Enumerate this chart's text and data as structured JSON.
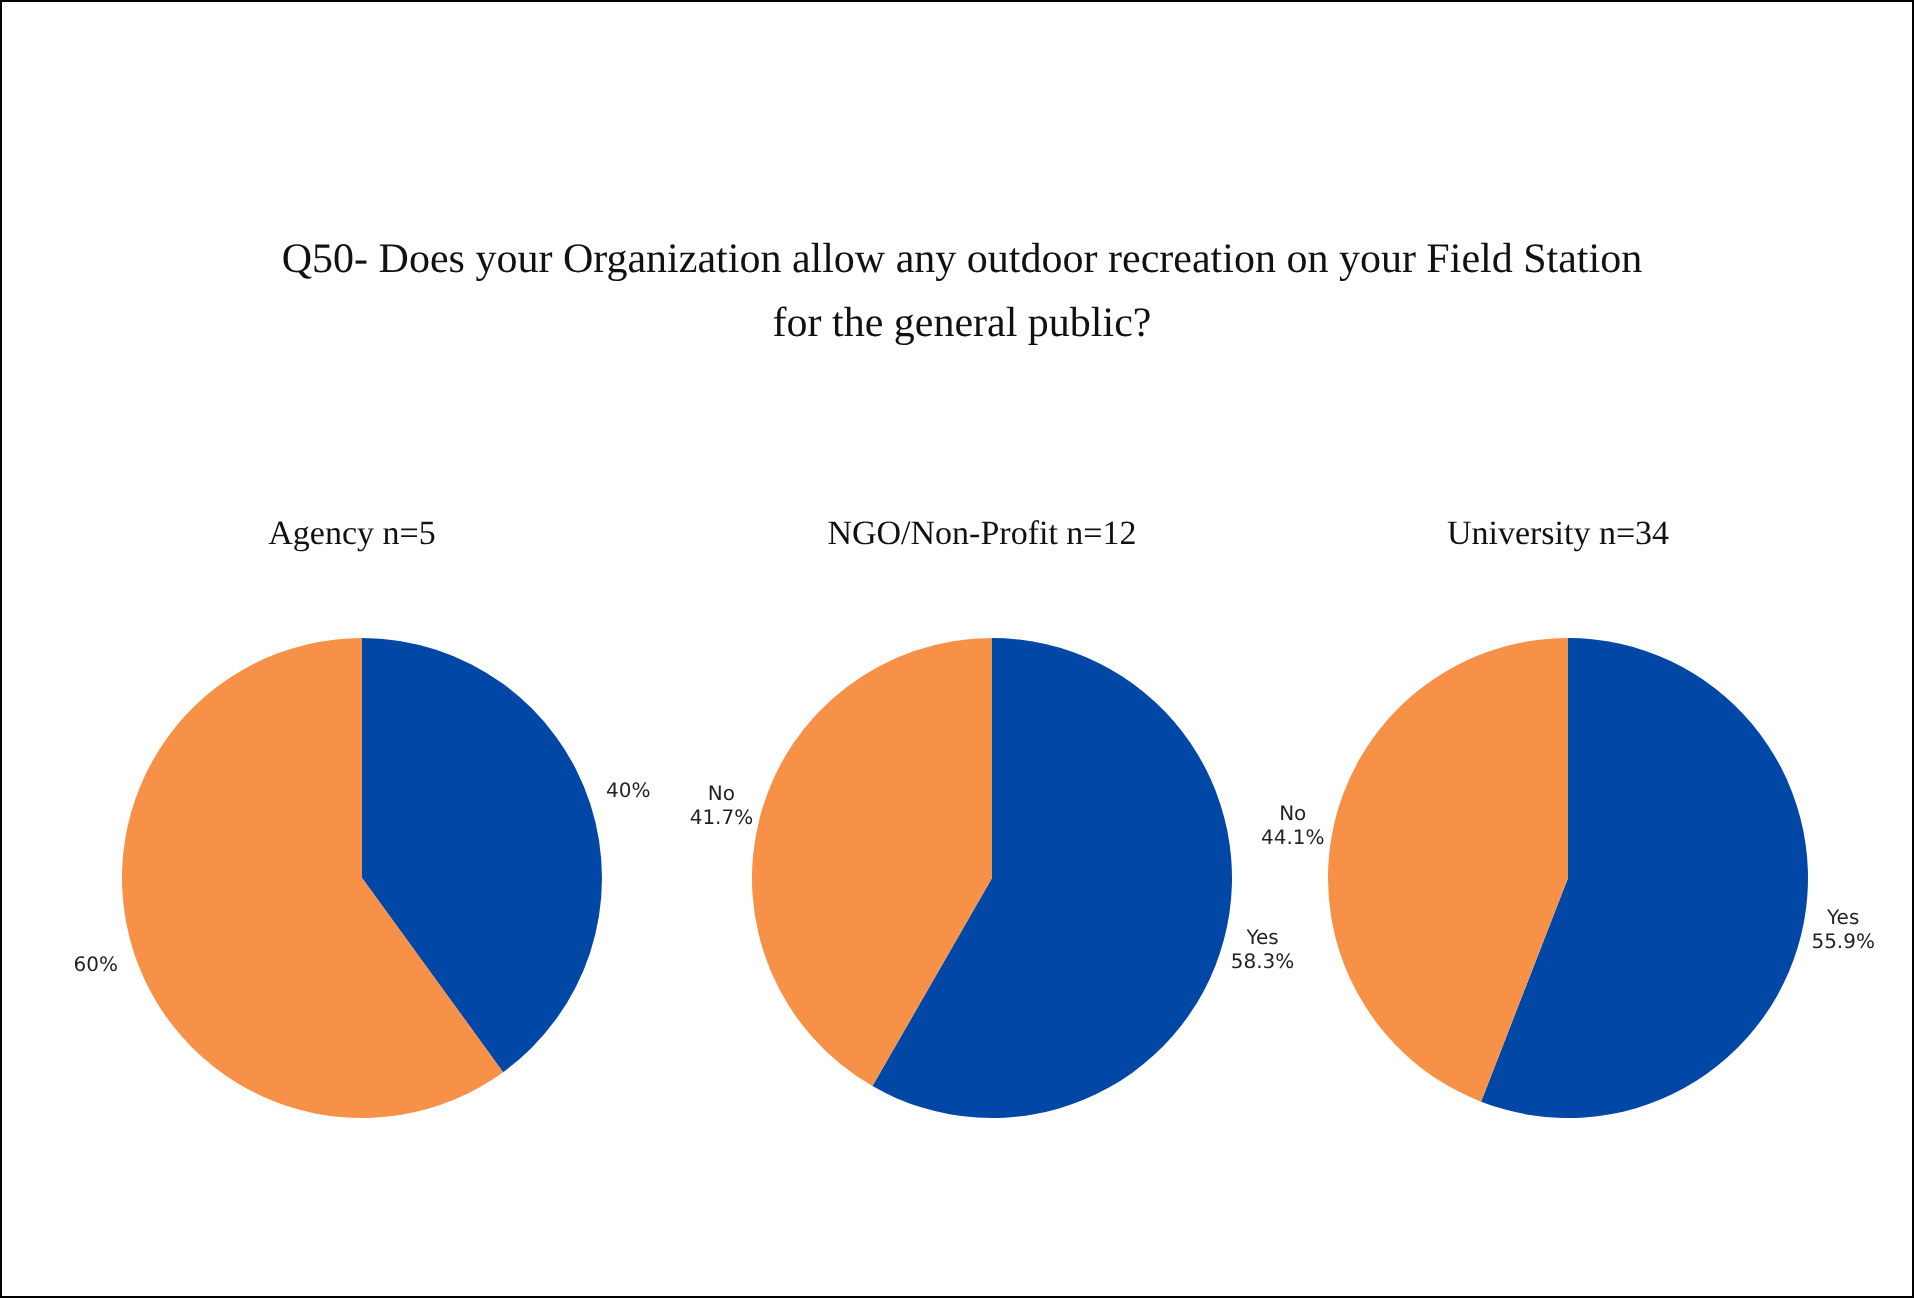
{
  "chart_data": [
    {
      "type": "pie",
      "title": "Agency  n=5",
      "annotations": [
        "Q50- Does your Organization allow any outdoor recreation on your Field Station for the general public?"
      ],
      "categories": [
        null,
        null
      ],
      "values": [
        40,
        60
      ],
      "colors": [
        "#0047a6",
        "#f79148"
      ],
      "value_labels": [
        "40%",
        "60%"
      ]
    },
    {
      "type": "pie",
      "title": "NGO/Non-Profit n=12",
      "categories": [
        "Yes",
        "No"
      ],
      "values": [
        58.3,
        41.7
      ],
      "colors": [
        "#0047a6",
        "#f79148"
      ],
      "value_labels": [
        "58.3%",
        "41.7%"
      ]
    },
    {
      "type": "pie",
      "title": "University  n=34",
      "categories": [
        "Yes",
        "No"
      ],
      "values": [
        55.9,
        44.1
      ],
      "colors": [
        "#0047a6",
        "#f79148"
      ],
      "value_labels": [
        "55.9%",
        "44.1%"
      ]
    }
  ]
}
